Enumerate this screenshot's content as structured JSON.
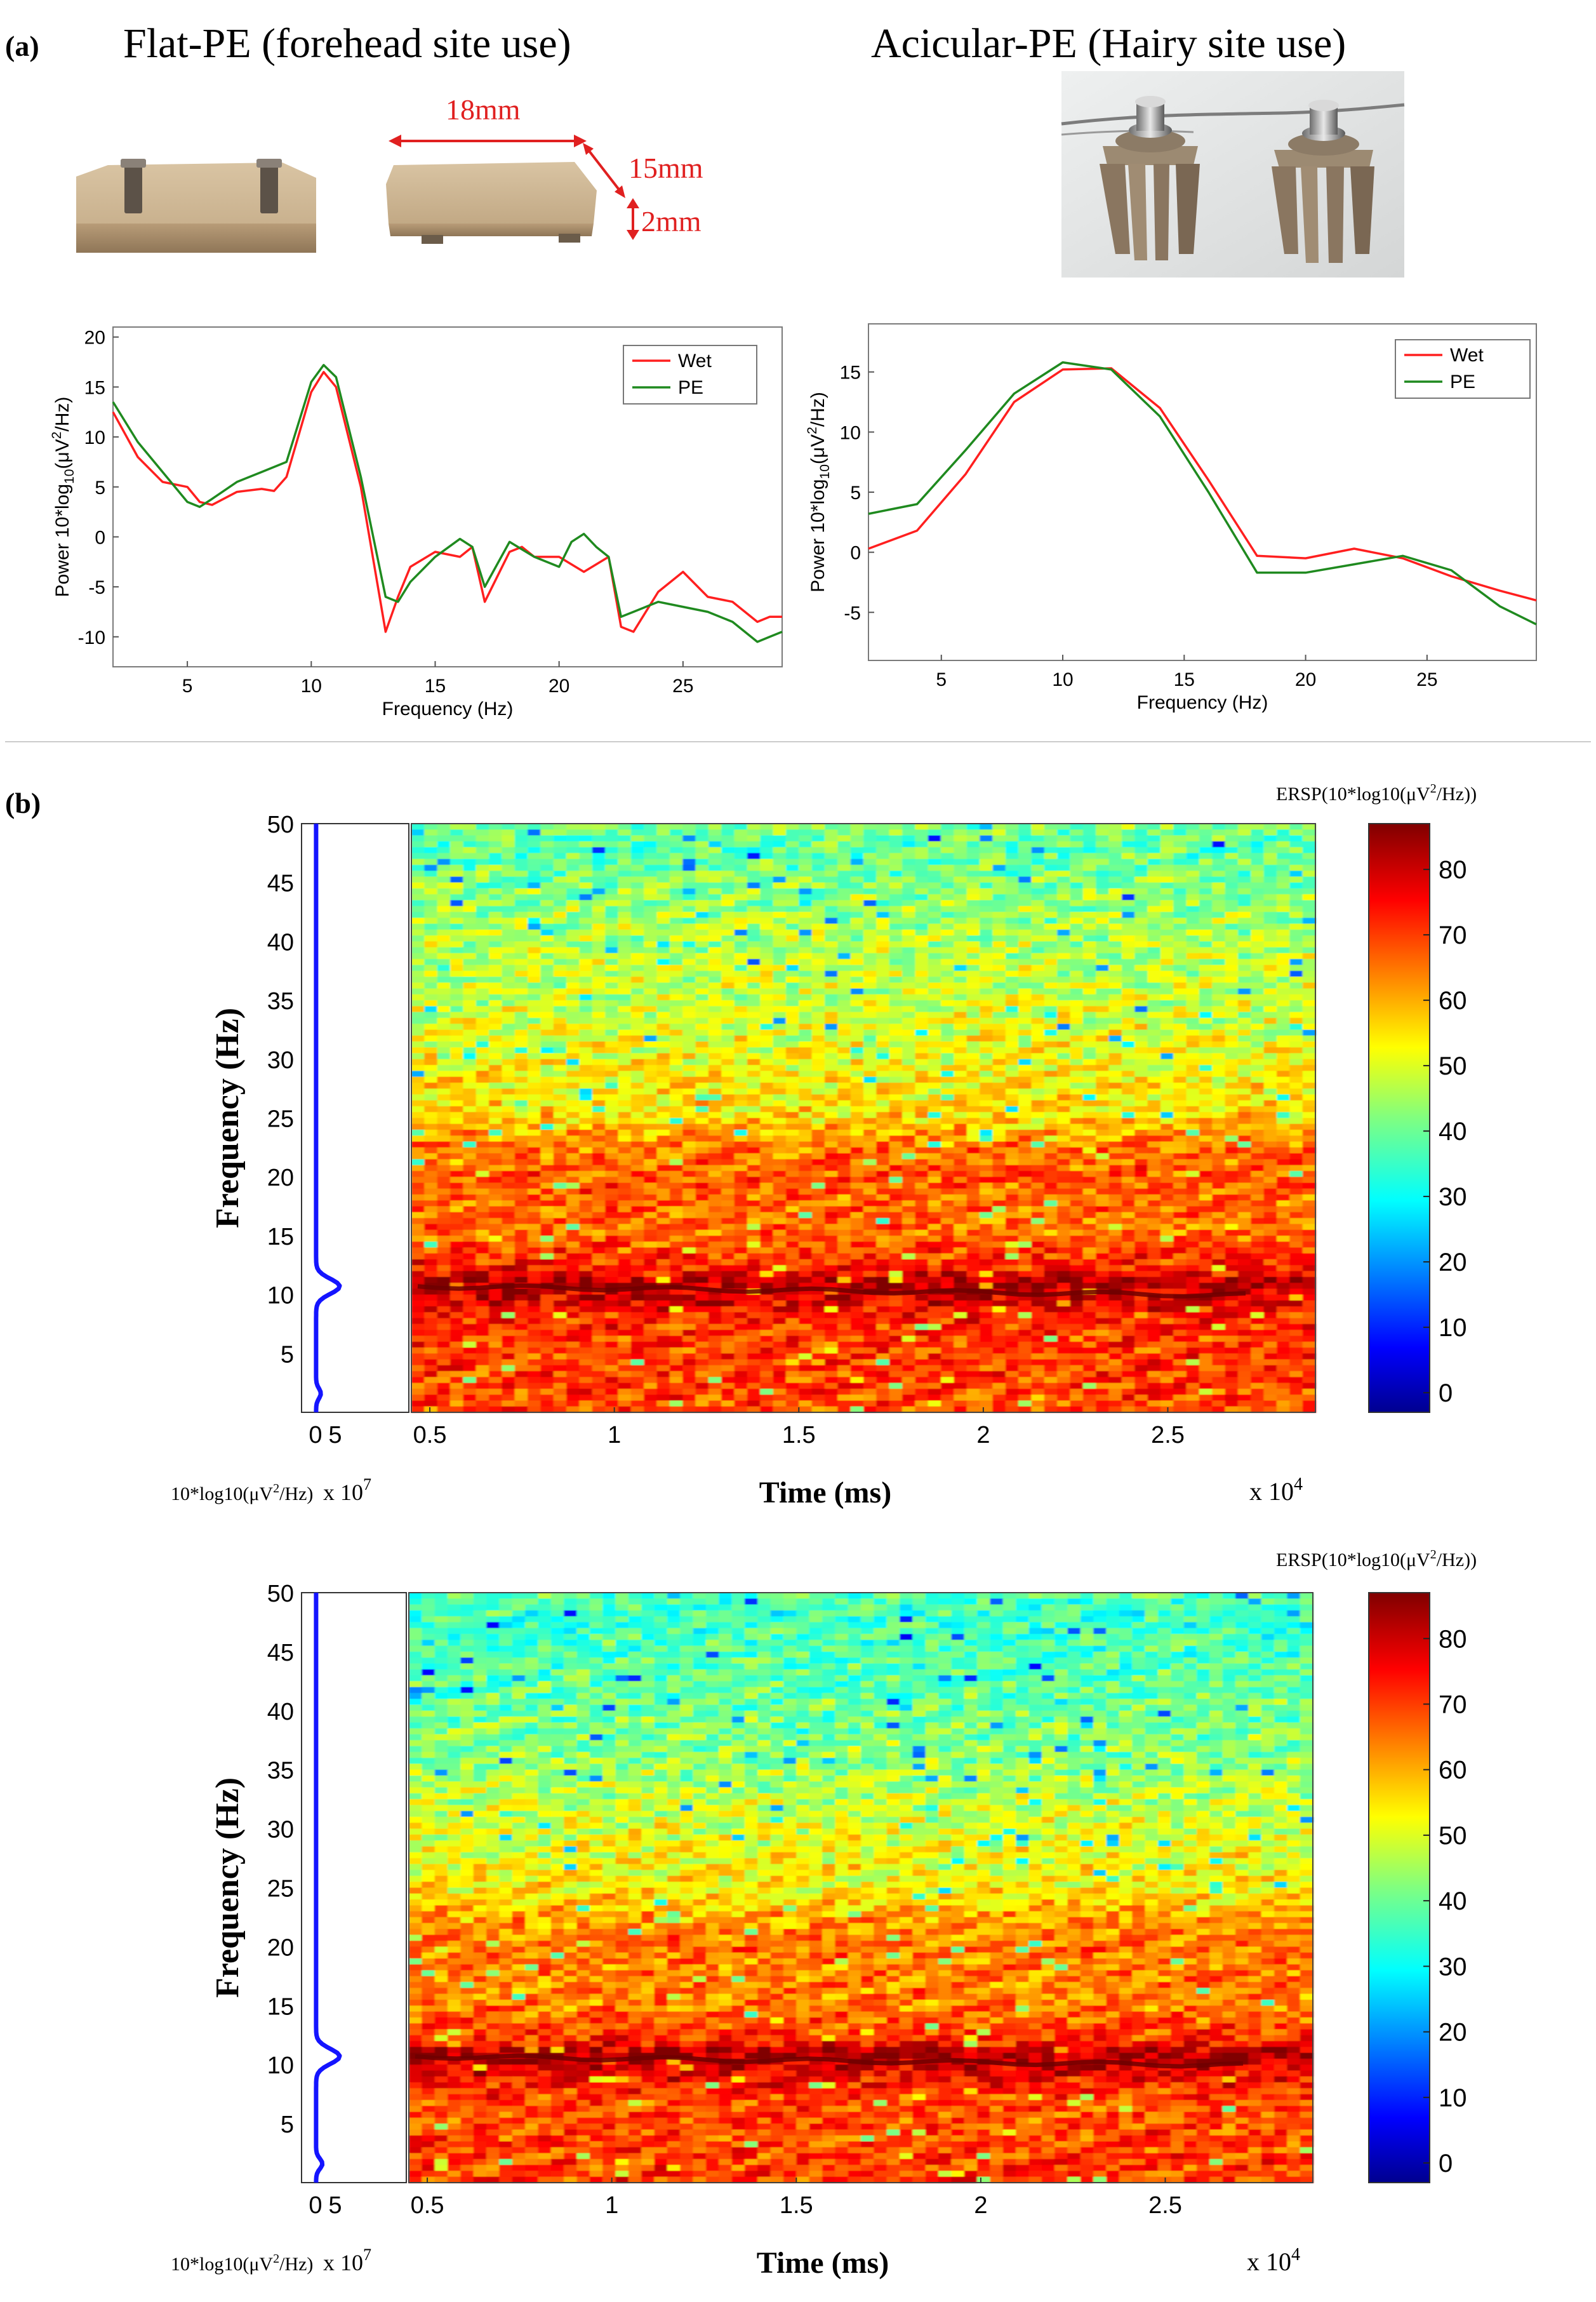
{
  "panel_a": {
    "label": "(a)",
    "flat_title": "Flat-PE (forehead site use)",
    "acicular_title": "Acicular-PE (Hairy site use)",
    "dimensions": {
      "length": "18mm",
      "width": "15mm",
      "height": "2mm"
    },
    "colors": {
      "wet": "#ff1f1f",
      "pe": "#1f8a1f",
      "dim": "#e02020"
    }
  },
  "panel_b": {
    "label": "(b)",
    "colors": {
      "trace": "#1414ff"
    }
  },
  "chart_data": [
    {
      "id": "psd-flat",
      "type": "line",
      "xlabel": "Frequency (Hz)",
      "ylabel_pre": "Power 10*log",
      "ylabel_sub": "10",
      "ylabel_mid": "(μV",
      "ylabel_sup": "2",
      "ylabel_post": "/Hz)",
      "xlim": [
        2,
        29
      ],
      "ylim": [
        -13,
        21
      ],
      "xticks": [
        5,
        10,
        15,
        20,
        25
      ],
      "yticks": [
        -10,
        -5,
        0,
        5,
        10,
        15,
        20
      ],
      "legend_position": "top-right",
      "series": [
        {
          "name": "Wet",
          "color": "#ff1f1f",
          "x": [
            2,
            3,
            4,
            5,
            5.5,
            6,
            7,
            8,
            8.5,
            9,
            10,
            10.5,
            11,
            12,
            13,
            13.5,
            14,
            15,
            16,
            16.5,
            17,
            18,
            18.5,
            19,
            20,
            21,
            22,
            22.5,
            23,
            24,
            25,
            26,
            27,
            28,
            28.5,
            29
          ],
          "y": [
            12.5,
            8,
            5.5,
            5,
            3.5,
            3.2,
            4.5,
            4.8,
            4.6,
            6,
            14.5,
            16.5,
            15,
            5,
            -9.5,
            -6,
            -3,
            -1.5,
            -2,
            -1,
            -6.5,
            -1.5,
            -1,
            -2,
            -2,
            -3.5,
            -2,
            -9,
            -9.5,
            -5.5,
            -3.5,
            -6,
            -6.5,
            -8.5,
            -8,
            -8
          ]
        },
        {
          "name": "PE",
          "color": "#1f8a1f",
          "x": [
            2,
            3,
            4,
            5,
            5.5,
            6,
            7,
            8,
            9,
            10,
            10.5,
            11,
            12,
            13,
            13.5,
            14,
            15,
            16,
            16.5,
            17,
            18,
            19,
            20,
            20.5,
            21,
            21.5,
            22,
            22.5,
            23,
            24,
            25,
            26,
            27,
            28,
            28.5,
            29
          ],
          "y": [
            13.5,
            9.5,
            6.5,
            3.5,
            3,
            3.8,
            5.5,
            6.5,
            7.5,
            15.5,
            17.2,
            16,
            6,
            -6,
            -6.5,
            -4.5,
            -2,
            -0.2,
            -1,
            -5,
            -0.5,
            -2,
            -3,
            -0.5,
            0.3,
            -1,
            -2,
            -8,
            -7.5,
            -6.5,
            -7,
            -7.5,
            -8.5,
            -10.5,
            -10,
            -9.5
          ]
        }
      ]
    },
    {
      "id": "psd-acicular",
      "type": "line",
      "xlabel": "Frequency (Hz)",
      "ylabel_pre": "Power 10*log",
      "ylabel_sub": "10",
      "ylabel_mid": "(μV",
      "ylabel_sup": "2",
      "ylabel_post": "/Hz)",
      "xlim": [
        2,
        29.5
      ],
      "ylim": [
        -9,
        19
      ],
      "xticks": [
        5,
        10,
        15,
        20,
        25
      ],
      "yticks": [
        -5,
        0,
        5,
        10,
        15
      ],
      "legend_position": "top-right",
      "series": [
        {
          "name": "Wet",
          "color": "#ff1f1f",
          "x": [
            2,
            4,
            6,
            8,
            10,
            12,
            14,
            16,
            18,
            20,
            22,
            24,
            26,
            28,
            29.5
          ],
          "y": [
            0.3,
            1.8,
            6.5,
            12.5,
            15.2,
            15.3,
            12,
            6,
            -0.3,
            -0.5,
            0.3,
            -0.5,
            -2,
            -3.2,
            -4
          ]
        },
        {
          "name": "PE",
          "color": "#1f8a1f",
          "x": [
            2,
            4,
            6,
            8,
            10,
            12,
            14,
            16,
            18,
            20,
            22,
            24,
            26,
            28,
            29.5
          ],
          "y": [
            3.2,
            4,
            8.5,
            13.2,
            15.8,
            15.2,
            11.3,
            5,
            -1.7,
            -1.7,
            -1,
            -0.3,
            -1.5,
            -4.5,
            -6
          ]
        }
      ]
    },
    {
      "id": "ersp-1",
      "type": "heatmap",
      "ylabel": "Frequency (Hz)",
      "xlabel": "Time (ms)",
      "x_multiplier": "x 10",
      "x_multiplier_exp": "4",
      "xlim": [
        0.45,
        2.9
      ],
      "ylim": [
        0,
        50
      ],
      "xticks": [
        "0.5",
        "1",
        "1.5",
        "2",
        "2.5"
      ],
      "yticks": [
        "5",
        "10",
        "15",
        "20",
        "25",
        "30",
        "35",
        "40",
        "45",
        "50"
      ],
      "colorbar_title": "ERSP(10*log10(μV",
      "colorbar_title_sup": "2",
      "colorbar_title_end": "/Hz))",
      "colorbar_ticks": [
        0,
        10,
        20,
        30,
        40,
        50,
        60,
        70,
        80
      ],
      "colorbar_range": [
        -3,
        87
      ],
      "alpha_peak_hz": 10.7,
      "side_xticks": [
        "0",
        "5"
      ],
      "side_label": "10*log10(μV",
      "side_label_sup": "2",
      "side_label_end": "/Hz)",
      "side_mult": "x 10",
      "side_mult_exp": "7",
      "bands": [
        [
          0,
          68
        ],
        [
          3,
          70
        ],
        [
          6,
          70
        ],
        [
          8,
          72
        ],
        [
          10,
          80
        ],
        [
          11,
          84
        ],
        [
          12,
          74
        ],
        [
          15,
          66
        ],
        [
          18,
          66
        ],
        [
          20,
          68
        ],
        [
          22,
          66
        ],
        [
          25,
          56
        ],
        [
          30,
          52
        ],
        [
          35,
          48
        ],
        [
          40,
          46
        ],
        [
          45,
          42
        ],
        [
          48,
          38
        ],
        [
          50,
          42
        ]
      ]
    },
    {
      "id": "ersp-2",
      "type": "heatmap",
      "ylabel": "Frequency (Hz)",
      "xlabel": "Time (ms)",
      "x_multiplier": "x 10",
      "x_multiplier_exp": "4",
      "xlim": [
        0.45,
        2.9
      ],
      "ylim": [
        0,
        50
      ],
      "xticks": [
        "0.5",
        "1",
        "1.5",
        "2",
        "2.5"
      ],
      "yticks": [
        "5",
        "10",
        "15",
        "20",
        "25",
        "30",
        "35",
        "40",
        "45",
        "50"
      ],
      "colorbar_title": "ERSP(10*log10(μV",
      "colorbar_title_sup": "2",
      "colorbar_title_end": "/Hz))",
      "colorbar_ticks": [
        0,
        10,
        20,
        30,
        40,
        50,
        60,
        70,
        80
      ],
      "colorbar_range": [
        -3,
        87
      ],
      "alpha_peak_hz": 10.7,
      "side_xticks": [
        "0",
        "5"
      ],
      "side_label": "10*log10(μV",
      "side_label_sup": "2",
      "side_label_end": "/Hz)",
      "side_mult": "x 10",
      "side_mult_exp": "7",
      "bands": [
        [
          0,
          70
        ],
        [
          3,
          70
        ],
        [
          6,
          68
        ],
        [
          8,
          72
        ],
        [
          10,
          80
        ],
        [
          11,
          84
        ],
        [
          12,
          72
        ],
        [
          15,
          64
        ],
        [
          18,
          64
        ],
        [
          20,
          66
        ],
        [
          22,
          62
        ],
        [
          25,
          54
        ],
        [
          30,
          50
        ],
        [
          35,
          44
        ],
        [
          40,
          40
        ],
        [
          45,
          37
        ],
        [
          48,
          35
        ],
        [
          50,
          38
        ]
      ]
    }
  ]
}
